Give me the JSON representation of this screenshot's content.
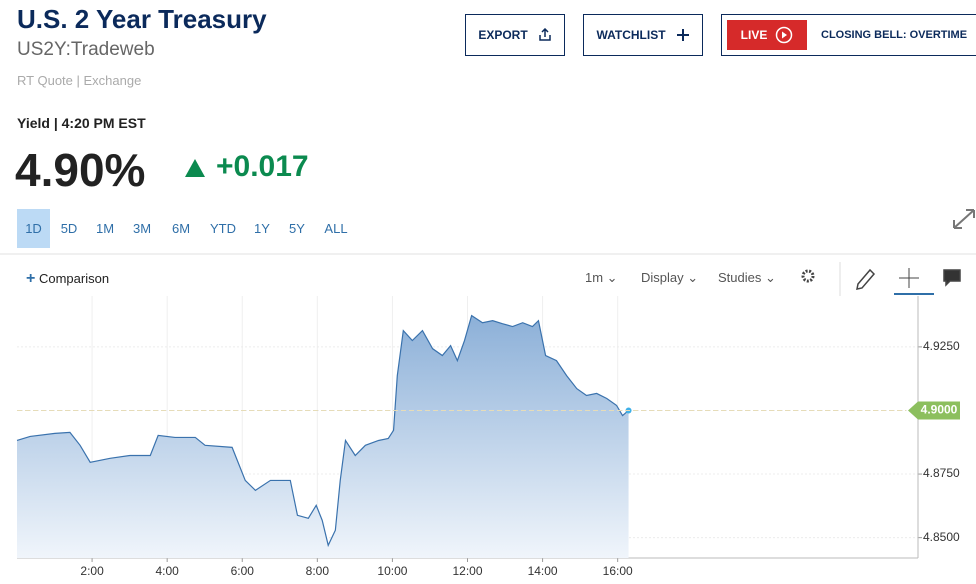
{
  "header": {
    "title": "U.S. 2 Year Treasury",
    "symbol": "US2Y:Tradeweb",
    "quote_source": "RT Quote | Exchange",
    "quote_time": "Yield | 4:20 PM EST",
    "price": "4.90%",
    "change": "+0.017"
  },
  "buttons": {
    "export": "EXPORT",
    "watchlist": "WATCHLIST",
    "live": "LIVE",
    "live_show": "CLOSING BELL: OVERTIME"
  },
  "range_tabs": [
    "1D",
    "5D",
    "1M",
    "3M",
    "6M",
    "YTD",
    "1Y",
    "5Y",
    "ALL"
  ],
  "toolbar": {
    "comparison": "Comparison",
    "interval": "1m",
    "display": "Display",
    "studies": "Studies"
  },
  "chart_data": {
    "type": "area",
    "color": "#3a72ad",
    "x": [
      0.0,
      0.35,
      1.01,
      1.41,
      1.68,
      1.95,
      2.48,
      3.01,
      3.55,
      3.76,
      4.21,
      4.75,
      5.01,
      5.73,
      6.08,
      6.35,
      6.75,
      7.28,
      7.47,
      7.76,
      7.97,
      8.13,
      8.29,
      8.48,
      8.61,
      8.75,
      9.01,
      9.28,
      9.63,
      9.89,
      10.03,
      10.13,
      10.29,
      10.53,
      10.8,
      11.07,
      11.33,
      11.55,
      11.73,
      11.92,
      12.11,
      12.4,
      12.67,
      12.93,
      13.2,
      13.47,
      13.73,
      13.89,
      14.08,
      14.37,
      14.64,
      14.91,
      15.17,
      15.44,
      15.71,
      15.97,
      16.13,
      16.29
    ],
    "values": [
      4.8882,
      4.8898,
      4.891,
      4.8914,
      4.8863,
      4.8796,
      4.8812,
      4.8823,
      4.8823,
      4.8902,
      4.8894,
      4.8894,
      4.8863,
      4.8855,
      4.8725,
      4.8686,
      4.8725,
      4.8725,
      4.8588,
      4.8576,
      4.8627,
      4.8568,
      4.847,
      4.8529,
      4.8725,
      4.8882,
      4.8823,
      4.8863,
      4.8882,
      4.889,
      4.8922,
      4.9137,
      4.9314,
      4.9275,
      4.9314,
      4.9243,
      4.9216,
      4.9255,
      4.9196,
      4.9275,
      4.9373,
      4.9345,
      4.9353,
      4.9341,
      4.933,
      4.9345,
      4.933,
      4.9353,
      4.9216,
      4.9196,
      4.9137,
      4.9086,
      4.9059,
      4.9067,
      4.9047,
      4.902,
      4.898,
      4.9
    ],
    "xlim": [
      0,
      24
    ],
    "xticks": [
      {
        "value": 2,
        "label": "2:00"
      },
      {
        "value": 4,
        "label": "4:00"
      },
      {
        "value": 6,
        "label": "6:00"
      },
      {
        "value": 8,
        "label": "8:00"
      },
      {
        "value": 10,
        "label": "10:00"
      },
      {
        "value": 12,
        "label": "12:00"
      },
      {
        "value": 14,
        "label": "14:00"
      },
      {
        "value": 16,
        "label": "16:00"
      }
    ],
    "ylim": [
      4.842,
      4.945
    ],
    "yticks": [
      {
        "value": 4.85,
        "label": "4.8500"
      },
      {
        "value": 4.875,
        "label": "4.8750"
      },
      {
        "value": 4.9,
        "label": "4.9000"
      },
      {
        "value": 4.925,
        "label": "4.9250"
      }
    ],
    "last_value": {
      "value": 4.9,
      "label": "4.9000"
    },
    "grid": true
  }
}
